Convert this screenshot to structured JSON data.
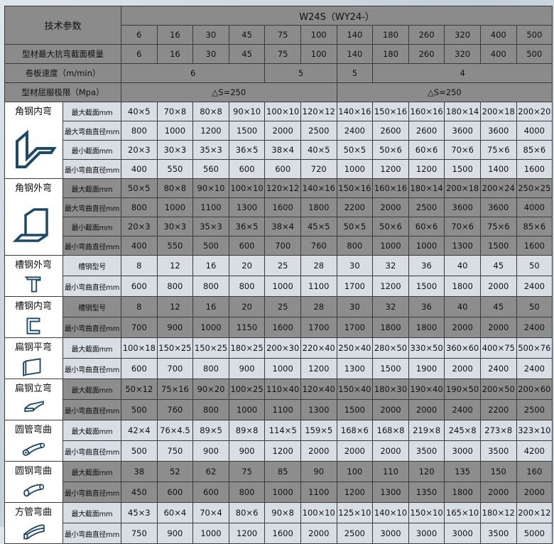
{
  "header": {
    "param_label": "技术参数",
    "model": "W24S（WY24-）",
    "model_numbers": [
      "6",
      "16",
      "30",
      "45",
      "75",
      "100",
      "140",
      "180",
      "260",
      "320",
      "400",
      "500"
    ],
    "modulus_label": "型材最大抗弯截面模量",
    "modulus_values": [
      "6",
      "16",
      "30",
      "45",
      "75",
      "100",
      "140",
      "180",
      "260",
      "320",
      "400",
      "500"
    ],
    "speed_label": "卷板速度（m/min）",
    "speed_values": [
      {
        "v": "6",
        "span": 4
      },
      {
        "v": "5",
        "span": 2
      },
      {
        "v": "5",
        "span": 1
      },
      {
        "v": "4",
        "span": 5
      }
    ],
    "yield_label": "型材屈服极限（Mpa）",
    "yield_values": [
      {
        "v": "△S=250",
        "span": 6
      },
      {
        "v": "△S=250",
        "span": 6
      }
    ]
  },
  "colors": {
    "header_bg": "#8b8b8b",
    "light_row": "#d8dee4",
    "dark_row": "#8d8d8d",
    "icon_stroke": "#1d4a68"
  },
  "groups": [
    {
      "name": "角钢内弯",
      "icon": "angle-inner-bend-icon",
      "shade": "light",
      "rows": [
        {
          "label": "最大截面mm",
          "values": [
            "40×5",
            "70×8",
            "80×8",
            "90×10",
            "100×10",
            "120×12",
            "140×16",
            "150×16",
            "160×16",
            "180×14",
            "200×18",
            "200×20"
          ]
        },
        {
          "label": "最大弯曲直径mm",
          "values": [
            "800",
            "1000",
            "1200",
            "1500",
            "2000",
            "2500",
            "2400",
            "2600",
            "2600",
            "3600",
            "3600",
            "4000"
          ]
        },
        {
          "label": "最小截面mm",
          "values": [
            "20×3",
            "30×3",
            "35×3",
            "36×5",
            "38×4",
            "40×5",
            "50×5",
            "50×6",
            "60×6",
            "70×6",
            "75×6",
            "85×6"
          ]
        },
        {
          "label": "最小弯曲直径mm",
          "values": [
            "400",
            "550",
            "560",
            "600",
            "600",
            "720",
            "1000",
            "1200",
            "1200",
            "1500",
            "1400",
            "1600"
          ]
        }
      ]
    },
    {
      "name": "角钢外弯",
      "icon": "angle-outer-bend-icon",
      "shade": "dark",
      "rows": [
        {
          "label": "最大截面mm",
          "values": [
            "50×5",
            "80×8",
            "90×10",
            "100×10",
            "120×12",
            "140×16",
            "150×16",
            "160×16",
            "180×14",
            "200×18",
            "200×24",
            "250×25"
          ]
        },
        {
          "label": "最大弯曲直径mm",
          "values": [
            "800",
            "1000",
            "1100",
            "1300",
            "1600",
            "1800",
            "2200",
            "2000",
            "2500",
            "3600",
            "3600",
            "4000"
          ]
        },
        {
          "label": "最小截面mm",
          "values": [
            "20×3",
            "30×3",
            "35×3",
            "36×5",
            "38×4",
            "45×5",
            "50×5",
            "50×6",
            "60×6",
            "70×6",
            "75×6",
            "85×6"
          ]
        },
        {
          "label": "最小弯曲直径mm",
          "values": [
            "400",
            "550",
            "500",
            "600",
            "700",
            "760",
            "800",
            "1000",
            "1000",
            "1300",
            "1500",
            "1600"
          ]
        }
      ]
    },
    {
      "name": "槽钢外弯",
      "icon": "channel-outer-bend-icon",
      "shade": "light",
      "rows": [
        {
          "label": "槽钢型号",
          "values": [
            "8",
            "12",
            "16",
            "20",
            "25",
            "28",
            "30",
            "32",
            "36",
            "40",
            "45",
            "50"
          ]
        },
        {
          "label": "最小弯曲直径mm",
          "values": [
            "600",
            "800",
            "800",
            "800",
            "1000",
            "1100",
            "1700",
            "1200",
            "1500",
            "1800",
            "2000",
            "2400"
          ]
        }
      ]
    },
    {
      "name": "槽钢内弯",
      "icon": "channel-inner-bend-icon",
      "shade": "dark",
      "rows": [
        {
          "label": "槽钢型号",
          "values": [
            "8",
            "12",
            "16",
            "20",
            "25",
            "28",
            "30",
            "32",
            "36",
            "40",
            "45",
            "50"
          ]
        },
        {
          "label": "最小弯曲直径mm",
          "values": [
            "700",
            "900",
            "1000",
            "1150",
            "1600",
            "1700",
            "1700",
            "1800",
            "1800",
            "2000",
            "2000",
            "2400"
          ]
        }
      ]
    },
    {
      "name": "扁钢平弯",
      "icon": "flat-bar-flat-bend-icon",
      "shade": "light",
      "rows": [
        {
          "label": "最大截面mm",
          "values": [
            "100×18",
            "150×25",
            "150×25",
            "180×25",
            "200×30",
            "220×40",
            "250×40",
            "280×50",
            "330×50",
            "360×60",
            "400×75",
            "500×76"
          ]
        },
        {
          "label": "最小弯曲直径mm",
          "values": [
            "600",
            "700",
            "800",
            "900",
            "1000",
            "1200",
            "1300",
            "1500",
            "1900",
            "2000",
            "2400",
            "2400"
          ]
        }
      ]
    },
    {
      "name": "扁钢立弯",
      "icon": "flat-bar-edge-bend-icon",
      "shade": "dark",
      "rows": [
        {
          "label": "最大截面mm",
          "values": [
            "50×12",
            "75×16",
            "90×20",
            "100×25",
            "110×40",
            "120×40",
            "150×40",
            "180×30",
            "190×40",
            "190×50",
            "200×50",
            "200×60"
          ]
        },
        {
          "label": "最小弯曲直径mm",
          "values": [
            "500",
            "760",
            "800",
            "1000",
            "1100",
            "1300",
            "1500",
            "2000",
            "2000",
            "2400",
            "2200",
            "2500"
          ]
        }
      ]
    },
    {
      "name": "圆管弯曲",
      "icon": "round-tube-bend-icon",
      "shade": "light",
      "rows": [
        {
          "label": "最大截面mm",
          "values": [
            "42×4",
            "76×4.5",
            "89×5",
            "89×8",
            "114×5",
            "159×5",
            "168×6",
            "168×8",
            "219×8",
            "245×8",
            "273×8",
            "323×10"
          ]
        },
        {
          "label": "最小弯曲直径mm",
          "values": [
            "500",
            "750",
            "900",
            "900",
            "1200",
            "2000",
            "2000",
            "2000",
            "3500",
            "3000",
            "3500",
            "4200"
          ]
        }
      ]
    },
    {
      "name": "圆钢弯曲",
      "icon": "round-bar-bend-icon",
      "shade": "dark",
      "rows": [
        {
          "label": "最大截面mm",
          "values": [
            "38",
            "52",
            "62",
            "75",
            "85",
            "90",
            "100",
            "110",
            "120",
            "135",
            "150",
            "160"
          ]
        },
        {
          "label": "最小弯曲直径mm",
          "values": [
            "450",
            "600",
            "600",
            "800",
            "1000",
            "1100",
            "1200",
            "1300",
            "1350",
            "1800",
            "2000",
            "2000"
          ]
        }
      ]
    },
    {
      "name": "方管弯曲",
      "icon": "square-tube-bend-icon",
      "shade": "light",
      "rows": [
        {
          "label": "最大截面mm",
          "values": [
            "45×3",
            "60×4",
            "70×4",
            "80×6",
            "90×8",
            "100×10",
            "125×10",
            "140×10",
            "150×10",
            "165×10",
            "180×12",
            "200×12"
          ]
        },
        {
          "label": "最小弯曲直径mm",
          "values": [
            "750",
            "900",
            "1000",
            "1200",
            "1600",
            "2000",
            "2500",
            "3000",
            "3000",
            "3000",
            "3500",
            "5000"
          ]
        }
      ]
    }
  ]
}
